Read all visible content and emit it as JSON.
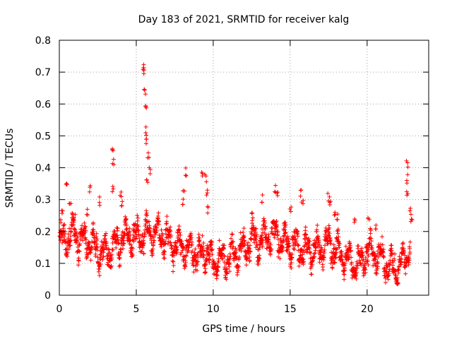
{
  "chart_data": {
    "type": "scatter",
    "title": "Day 183 of 2021, SRMTID for receiver kalg",
    "xlabel": "GPS time / hours",
    "ylabel": "SRMTID / TECUs",
    "xlim": [
      0,
      24
    ],
    "ylim": [
      0,
      0.8
    ],
    "x_ticks": [
      "0",
      "5",
      "10",
      "15",
      "20"
    ],
    "y_ticks": [
      "0",
      "0.1",
      "0.2",
      "0.3",
      "0.4",
      "0.5",
      "0.6",
      "0.7",
      "0.8"
    ],
    "grid": true,
    "marker": "+",
    "series": [
      {
        "name": "SRMTID",
        "color": "#ff0000",
        "profile": [
          [
            0.0,
            0.16
          ],
          [
            0.5,
            0.18
          ],
          [
            1.0,
            0.2
          ],
          [
            1.5,
            0.17
          ],
          [
            2.0,
            0.16
          ],
          [
            2.5,
            0.14
          ],
          [
            3.0,
            0.13
          ],
          [
            3.5,
            0.15
          ],
          [
            4.0,
            0.17
          ],
          [
            4.5,
            0.19
          ],
          [
            5.0,
            0.18
          ],
          [
            5.5,
            0.19
          ],
          [
            6.0,
            0.2
          ],
          [
            6.5,
            0.19
          ],
          [
            7.0,
            0.17
          ],
          [
            7.5,
            0.16
          ],
          [
            8.0,
            0.15
          ],
          [
            8.5,
            0.14
          ],
          [
            9.0,
            0.13
          ],
          [
            9.5,
            0.14
          ],
          [
            10.0,
            0.11
          ],
          [
            10.5,
            0.11
          ],
          [
            11.0,
            0.12
          ],
          [
            11.5,
            0.13
          ],
          [
            12.0,
            0.14
          ],
          [
            12.5,
            0.17
          ],
          [
            13.0,
            0.17
          ],
          [
            13.5,
            0.18
          ],
          [
            14.0,
            0.19
          ],
          [
            14.5,
            0.17
          ],
          [
            15.0,
            0.16
          ],
          [
            15.5,
            0.15
          ],
          [
            16.0,
            0.14
          ],
          [
            16.5,
            0.14
          ],
          [
            17.0,
            0.15
          ],
          [
            17.5,
            0.16
          ],
          [
            18.0,
            0.14
          ],
          [
            18.5,
            0.12
          ],
          [
            19.0,
            0.1
          ],
          [
            19.5,
            0.1
          ],
          [
            20.0,
            0.14
          ],
          [
            20.5,
            0.13
          ],
          [
            21.0,
            0.11
          ],
          [
            21.5,
            0.09
          ],
          [
            22.0,
            0.08
          ],
          [
            22.5,
            0.12
          ],
          [
            22.8,
            0.16
          ]
        ],
        "spikes": [
          [
            0.2,
            0.27
          ],
          [
            0.5,
            0.36
          ],
          [
            0.7,
            0.31
          ],
          [
            1.0,
            0.26
          ],
          [
            1.8,
            0.28
          ],
          [
            2.0,
            0.35
          ],
          [
            2.6,
            0.31
          ],
          [
            3.5,
            0.47
          ],
          [
            3.5,
            0.43
          ],
          [
            3.5,
            0.35
          ],
          [
            4.0,
            0.33
          ],
          [
            4.1,
            0.3
          ],
          [
            5.5,
            0.73
          ],
          [
            5.5,
            0.71
          ],
          [
            5.55,
            0.66
          ],
          [
            5.6,
            0.6
          ],
          [
            5.6,
            0.53
          ],
          [
            5.7,
            0.5
          ],
          [
            5.8,
            0.45
          ],
          [
            5.9,
            0.41
          ],
          [
            5.7,
            0.38
          ],
          [
            8.2,
            0.4
          ],
          [
            8.1,
            0.35
          ],
          [
            8.0,
            0.31
          ],
          [
            9.3,
            0.4
          ],
          [
            9.5,
            0.38
          ],
          [
            9.6,
            0.33
          ],
          [
            9.7,
            0.28
          ],
          [
            12.5,
            0.28
          ],
          [
            13.2,
            0.32
          ],
          [
            14.0,
            0.35
          ],
          [
            14.2,
            0.33
          ],
          [
            15.0,
            0.28
          ],
          [
            15.7,
            0.34
          ],
          [
            15.8,
            0.3
          ],
          [
            17.5,
            0.32
          ],
          [
            17.6,
            0.3
          ],
          [
            17.9,
            0.28
          ],
          [
            18.1,
            0.26
          ],
          [
            19.2,
            0.24
          ],
          [
            20.1,
            0.26
          ],
          [
            20.6,
            0.22
          ],
          [
            22.6,
            0.43
          ],
          [
            22.6,
            0.38
          ],
          [
            22.6,
            0.34
          ],
          [
            22.8,
            0.28
          ],
          [
            22.9,
            0.24
          ]
        ]
      }
    ]
  }
}
